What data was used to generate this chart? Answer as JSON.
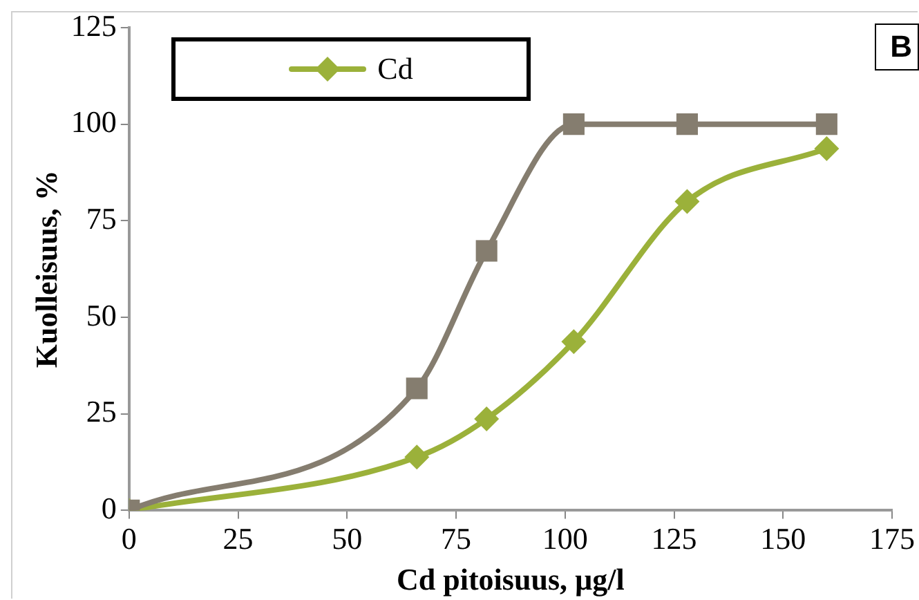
{
  "chart_data": {
    "type": "line",
    "xlabel": "Cd pitoisuus, µg/l",
    "ylabel": "Kuolleisuus, %",
    "annotations": [
      "B"
    ],
    "xlim": [
      0,
      175
    ],
    "xticks": [
      0,
      25,
      50,
      75,
      100,
      125,
      150,
      175
    ],
    "ylim": [
      0,
      125
    ],
    "yticks": [
      0,
      25,
      50,
      75,
      100,
      125
    ],
    "grid": false,
    "legend": "top left",
    "series": [
      {
        "color": "#857d6f",
        "marker": "square",
        "x": [
          0,
          66,
          82,
          102,
          128,
          160
        ],
        "values": [
          0,
          31.6,
          67.2,
          100,
          100,
          100
        ]
      },
      {
        "name": "Cd",
        "color": "#9bb13a",
        "marker": "diamond",
        "x": [
          0,
          66,
          82,
          102,
          128,
          160
        ],
        "values": [
          0,
          13.8,
          23.7,
          43.7,
          80,
          93.7
        ]
      }
    ]
  }
}
